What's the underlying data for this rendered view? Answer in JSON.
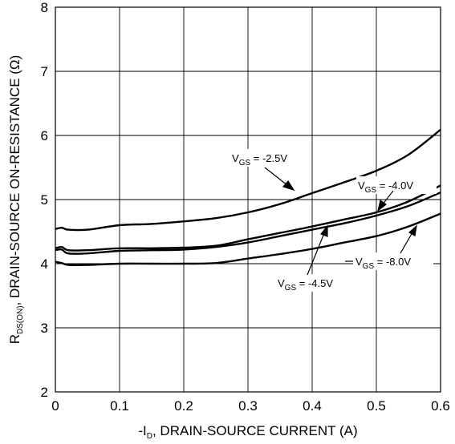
{
  "chart_data": {
    "type": "line",
    "xlabel": {
      "prefix": "-I",
      "sub": "D",
      "rest": ", DRAIN-SOURCE CURRENT (A)"
    },
    "ylabel": {
      "prefix": "R",
      "sub": "DS(ON)",
      "rest": ", DRAIN-SOURCE ON-RESISTANCE (Ω)"
    },
    "xlim": [
      0,
      0.6
    ],
    "ylim": [
      2,
      8
    ],
    "x_ticks": [
      "0",
      "0.1",
      "0.2",
      "0.3",
      "0.4",
      "0.5",
      "0.6"
    ],
    "y_ticks": [
      "2",
      "3",
      "4",
      "5",
      "6",
      "7",
      "8"
    ],
    "grid": true,
    "x": [
      0,
      0.01,
      0.02,
      0.05,
      0.1,
      0.15,
      0.2,
      0.25,
      0.3,
      0.35,
      0.4,
      0.45,
      0.5,
      0.55,
      0.6
    ],
    "series": [
      {
        "name": "V_GS = -2.5V",
        "vgs": "-2.5V",
        "values": [
          4.54,
          4.56,
          4.53,
          4.53,
          4.6,
          4.62,
          4.66,
          4.71,
          4.8,
          4.93,
          5.1,
          5.27,
          5.45,
          5.7,
          6.09
        ]
      },
      {
        "name": "V_GS = -4.0V",
        "vgs": "-4.0V",
        "values": [
          4.24,
          4.26,
          4.21,
          4.21,
          4.24,
          4.24,
          4.25,
          4.28,
          4.38,
          4.48,
          4.58,
          4.69,
          4.8,
          4.97,
          5.22
        ]
      },
      {
        "name": "V_GS = -4.5V",
        "vgs": "-4.5V",
        "values": [
          4.21,
          4.22,
          4.16,
          4.16,
          4.2,
          4.21,
          4.22,
          4.26,
          4.33,
          4.43,
          4.53,
          4.63,
          4.75,
          4.9,
          5.11
        ]
      },
      {
        "name": "V_GS = -8.0V",
        "vgs": "-8.0V",
        "values": [
          4.03,
          4.01,
          3.98,
          3.98,
          4.0,
          4.0,
          4.0,
          4.01,
          4.08,
          4.15,
          4.23,
          4.33,
          4.43,
          4.58,
          4.78
        ]
      }
    ],
    "annotations": [
      {
        "text": {
          "v": "V",
          "sub": "GS",
          "rest": " = -2.5V"
        },
        "series": "V_GS = -2.5V"
      },
      {
        "text": {
          "v": "V",
          "sub": "GS",
          "rest": " = -4.0V"
        },
        "series": "V_GS = -4.0V"
      },
      {
        "text": {
          "v": "V",
          "sub": "GS",
          "rest": " = -4.5V"
        },
        "series": "V_GS = -4.5V"
      },
      {
        "text": {
          "v": "V",
          "sub": "GS",
          "rest": " = -8.0V"
        },
        "series": "V_GS = -8.0V"
      }
    ]
  }
}
